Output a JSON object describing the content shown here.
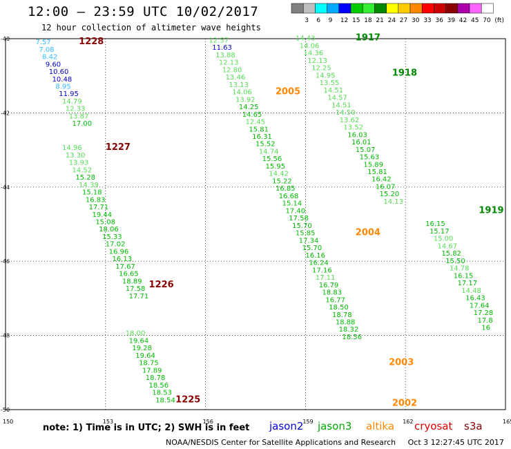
{
  "header": {
    "title": "12:00 – 23:59 UTC 10/02/2017",
    "subtitle": "12 hour collection of altimeter wave heights"
  },
  "color_scale": {
    "bins": [
      {
        "label": "",
        "color": "#808080"
      },
      {
        "label": "3",
        "color": "#bfbfbf"
      },
      {
        "label": "6",
        "color": "#00ffff"
      },
      {
        "label": "9",
        "color": "#00aaff"
      },
      {
        "label": "12",
        "color": "#0000ff"
      },
      {
        "label": "15",
        "color": "#00cc00"
      },
      {
        "label": "18",
        "color": "#33ee33"
      },
      {
        "label": "21",
        "color": "#008800"
      },
      {
        "label": "24",
        "color": "#ffff00"
      },
      {
        "label": "27",
        "color": "#ffcc00"
      },
      {
        "label": "30",
        "color": "#ff8800"
      },
      {
        "label": "33",
        "color": "#ff0000"
      },
      {
        "label": "36",
        "color": "#cc0000"
      },
      {
        "label": "39",
        "color": "#880000"
      },
      {
        "label": "42",
        "color": "#aa00aa"
      },
      {
        "label": "45",
        "color": "#ff66ff"
      },
      {
        "label": "70",
        "color": "#ffffff"
      },
      {
        "label": "(ft)",
        "color": "#000000"
      }
    ]
  },
  "chart_data": {
    "type": "scatter",
    "xlim": [
      150,
      165
    ],
    "ylim": [
      -50,
      -40
    ],
    "x_ticks": [
      "150",
      "153",
      "156",
      "159",
      "162",
      "165"
    ],
    "y_ticks": [
      "-40",
      "-42",
      "-44",
      "-46",
      "-48",
      "-50"
    ],
    "grid": true,
    "level_colors": {
      "c": "#33bbff",
      "b": "#0000cc",
      "g": "#00bb00",
      "lg": "#55dd55",
      "dg": "#008800"
    },
    "passes": [
      {
        "time": "1228",
        "time_lat": -40.15,
        "time_lon": 152.2,
        "lon_start": 150.9,
        "lon_step": 0.1,
        "lat_start": -40.15,
        "lat_step": 0.2,
        "values": [
          [
            "7.57",
            "c"
          ],
          [
            "7.08",
            "c"
          ],
          [
            "8.42",
            "c"
          ],
          [
            "9.60",
            "b"
          ],
          [
            "10.60",
            "b"
          ],
          [
            "10.48",
            "b"
          ],
          [
            "8.95",
            "c"
          ],
          [
            "11.95",
            "b"
          ],
          [
            "14.79",
            "lg"
          ],
          [
            "12.33",
            "lg"
          ],
          [
            "13.87",
            "lg"
          ],
          [
            "17.00",
            "g"
          ]
        ]
      },
      {
        "time": "1227",
        "time_lat": -43.0,
        "time_lon": 153.0,
        "lon_start": 151.7,
        "lon_step": 0.1,
        "lat_start": -43.0,
        "lat_step": 0.2,
        "values": [
          [
            "14.96",
            "lg"
          ],
          [
            "13.30",
            "lg"
          ],
          [
            "13.93",
            "lg"
          ],
          [
            "14.52",
            "lg"
          ],
          [
            "15.28",
            "g"
          ],
          [
            "14.39",
            "lg"
          ],
          [
            "15.18",
            "g"
          ],
          [
            "16.83",
            "g"
          ],
          [
            "17.71",
            "g"
          ],
          [
            "19.44",
            "g"
          ],
          [
            "15.08",
            "g"
          ],
          [
            "18.06",
            "g"
          ],
          [
            "15.33",
            "g"
          ],
          [
            "17.02",
            "g"
          ],
          [
            "16.96",
            "g"
          ],
          [
            "16.13",
            "g"
          ],
          [
            "17.67",
            "g"
          ],
          [
            "16.65",
            "g"
          ],
          [
            "18.89",
            "g"
          ],
          [
            "17.58",
            "g"
          ],
          [
            "17.71",
            "g"
          ]
        ]
      },
      {
        "time": "1226",
        "time_lat": -46.7,
        "time_lon": 154.3,
        "lon_start": 153.1,
        "lon_step": 0.1,
        "lat_start": -47.1,
        "lat_step": 0.2,
        "values": []
      },
      {
        "time": "1225",
        "time_lat": -49.8,
        "time_lon": 155.1,
        "lon_start": 153.6,
        "lon_step": 0.1,
        "lat_start": -48.0,
        "lat_step": 0.2,
        "values": [
          [
            "18.00",
            "lg"
          ],
          [
            "19.64",
            "g"
          ],
          [
            "19.28",
            "g"
          ],
          [
            "19.64",
            "g"
          ],
          [
            "18.75",
            "g"
          ],
          [
            "17.89",
            "g"
          ],
          [
            "18.78",
            "g"
          ],
          [
            "18.56",
            "g"
          ],
          [
            "18.53",
            "g"
          ],
          [
            "18.54",
            "g"
          ]
        ]
      },
      {
        "time": "2005",
        "time_lat": -41.5,
        "time_lon": 158.1,
        "lon_start": 156.1,
        "lon_step": 0.1,
        "lat_start": -40.1,
        "lat_step": 0.2,
        "values": [
          [
            "12.57",
            "lg"
          ],
          [
            "11.63",
            "b"
          ],
          [
            "13.88",
            "lg"
          ],
          [
            "12.13",
            "lg"
          ],
          [
            "12.80",
            "lg"
          ],
          [
            "13.46",
            "lg"
          ],
          [
            "13.13",
            "lg"
          ],
          [
            "14.06",
            "lg"
          ],
          [
            "13.92",
            "lg"
          ],
          [
            "14.25",
            "g"
          ],
          [
            "14.65",
            "g"
          ],
          [
            "12.45",
            "lg"
          ],
          [
            "15.81",
            "g"
          ],
          [
            "16.31",
            "g"
          ],
          [
            "15.52",
            "g"
          ],
          [
            "14.74",
            "lg"
          ],
          [
            "15.56",
            "g"
          ],
          [
            "15.95",
            "g"
          ],
          [
            "14.42",
            "lg"
          ],
          [
            "15.22",
            "g"
          ],
          [
            "16.85",
            "g"
          ],
          [
            "16.68",
            "g"
          ],
          [
            "15.14",
            "g"
          ],
          [
            "17.40",
            "g"
          ],
          [
            "17.58",
            "g"
          ],
          [
            "15.70",
            "g"
          ],
          [
            "15.85",
            "g"
          ],
          [
            "17.34",
            "g"
          ],
          [
            "15.70",
            "g"
          ],
          [
            "16.16",
            "g"
          ],
          [
            "16.24",
            "g"
          ],
          [
            "17.16",
            "g"
          ],
          [
            "17.11",
            "lg"
          ],
          [
            "16.79",
            "g"
          ],
          [
            "18.83",
            "g"
          ],
          [
            "16.77",
            "g"
          ],
          [
            "18.50",
            "g"
          ],
          [
            "18.78",
            "g"
          ],
          [
            "18.88",
            "g"
          ],
          [
            "18.32",
            "g"
          ],
          [
            "18.56",
            "g"
          ]
        ]
      },
      {
        "time": "2004",
        "time_lat": -45.3,
        "time_lon": 160.5,
        "lon_start": 160,
        "lon_step": 0,
        "lat_start": -45.3,
        "lat_step": 0,
        "values": []
      },
      {
        "time": "2003",
        "time_lat": -48.8,
        "time_lon": 161.5,
        "lon_start": 160,
        "lon_step": 0,
        "lat_start": -48.8,
        "lat_step": 0,
        "values": []
      },
      {
        "time": "2002",
        "time_lat": -49.9,
        "time_lon": 161.6,
        "lon_start": 160,
        "lon_step": 0,
        "lat_start": -49.9,
        "lat_step": 0,
        "values": []
      },
      {
        "time": "1917",
        "time_lat": -40.05,
        "time_lon": 160.5,
        "lon_start": 158.7,
        "lon_step": 0.12,
        "lat_start": -40.05,
        "lat_step": 0.2,
        "values": [
          [
            "14.43",
            "lg"
          ],
          [
            "14.06",
            "lg"
          ],
          [
            "14.36",
            "lg"
          ],
          [
            "12.13",
            "lg"
          ],
          [
            "12.25",
            "lg"
          ],
          [
            "14.95",
            "lg"
          ],
          [
            "13.55",
            "lg"
          ],
          [
            "14.51",
            "lg"
          ],
          [
            "14.57",
            "lg"
          ],
          [
            "14.51",
            "lg"
          ],
          [
            "14.50",
            "lg"
          ],
          [
            "13.62",
            "lg"
          ],
          [
            "13.52",
            "lg"
          ],
          [
            "16.03",
            "g"
          ],
          [
            "16.01",
            "g"
          ],
          [
            "15.07",
            "g"
          ],
          [
            "15.63",
            "g"
          ],
          [
            "15.89",
            "g"
          ],
          [
            "15.81",
            "g"
          ],
          [
            "16.42",
            "g"
          ],
          [
            "16.07",
            "g"
          ],
          [
            "15.20",
            "g"
          ],
          [
            "14.13",
            "lg"
          ]
        ]
      },
      {
        "time": "1918",
        "time_lat": -41.0,
        "time_lon": 161.6,
        "lon_start": 160,
        "lon_step": 0,
        "lat_start": -41.0,
        "lat_step": 0,
        "values": []
      },
      {
        "time": "1919",
        "time_lat": -44.7,
        "time_lon": 164.2,
        "lon_start": 162.6,
        "lon_step": 0.12,
        "lat_start": -45.05,
        "lat_step": 0.2,
        "values": [
          [
            "16.15",
            "g"
          ],
          [
            "15.17",
            "g"
          ],
          [
            "15.00",
            "lg"
          ],
          [
            "14.67",
            "lg"
          ],
          [
            "15.82",
            "g"
          ],
          [
            "15.50",
            "g"
          ],
          [
            "14.78",
            "lg"
          ],
          [
            "16.15",
            "g"
          ],
          [
            "17.17",
            "g"
          ],
          [
            "14.48",
            "lg"
          ],
          [
            "16.43",
            "g"
          ],
          [
            "17.64",
            "g"
          ],
          [
            "17.28",
            "g"
          ],
          [
            "17.8",
            "g"
          ],
          [
            "16",
            "g"
          ]
        ]
      }
    ]
  },
  "note": {
    "text": "note:  1) Time is in UTC;  2) SWH is in feet",
    "satellites": [
      {
        "name": "jason2",
        "color": "#0000dd"
      },
      {
        "name": "jason3",
        "color": "#00aa00"
      },
      {
        "name": "altika",
        "color": "#ff8800"
      },
      {
        "name": "cryosat",
        "color": "#dd0000"
      },
      {
        "name": "s3a",
        "color": "#880000"
      }
    ]
  },
  "footer": {
    "credit": "NOAA/NESDIS Center for Satellite Applications and Research",
    "timestamp": "Oct  3 12:27:45 UTC 2017"
  }
}
